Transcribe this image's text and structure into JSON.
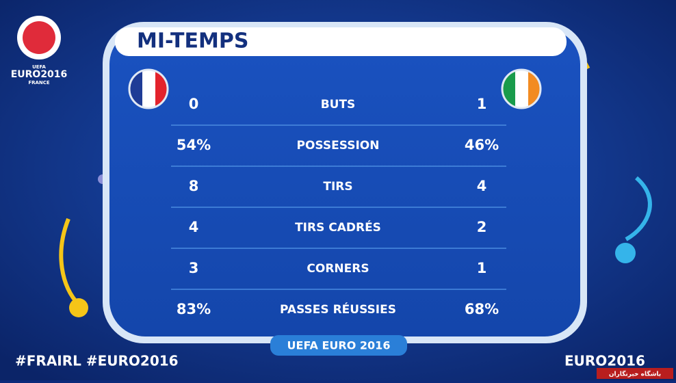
{
  "logo": {
    "top": "UEFA",
    "name": "EURO2016",
    "country": "FRANCE"
  },
  "title": "MI-TEMPS",
  "rows": [
    {
      "home": "0",
      "stat": "BUTS",
      "away": "1"
    },
    {
      "home": "54%",
      "stat": "POSSESSION",
      "away": "46%"
    },
    {
      "home": "8",
      "stat": "TIRS",
      "away": "4"
    },
    {
      "home": "4",
      "stat": "TIRS CADRÉS",
      "away": "2"
    },
    {
      "home": "3",
      "stat": "CORNERS",
      "away": "1"
    },
    {
      "home": "83%",
      "stat": "PASSES RÉUSSIES",
      "away": "68%"
    }
  ],
  "bottom_banner": "UEFA EURO 2016",
  "hashtags": "#FRAIRL #EURO2016",
  "footer_brand": "EURO2016",
  "watermark": "باشگاه خبرنگاران"
}
